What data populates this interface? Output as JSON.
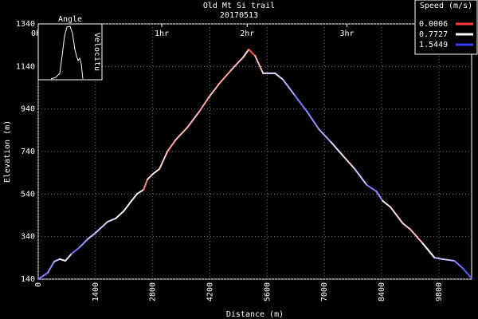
{
  "chart_data": {
    "type": "line",
    "title": "Old Mt Si trail",
    "subtitle": "20170513",
    "x_label": "Distance (m)",
    "y_label": "Elevation (m)",
    "x": [
      0,
      234,
      390,
      526,
      663,
      819,
      1014,
      1209,
      1404,
      1697,
      1892,
      2087,
      2282,
      2418,
      2574,
      2672,
      2808,
      2964,
      3159,
      3354,
      3647,
      3939,
      4173,
      4427,
      4719,
      5012,
      5148,
      5304,
      5499,
      5792,
      5987,
      6279,
      6572,
      6864,
      7157,
      7449,
      7742,
      8034,
      8268,
      8424,
      8619,
      8912,
      9107,
      9399,
      9692,
      9887,
      10179,
      10374,
      10600
    ],
    "y": [
      140,
      170,
      223,
      234,
      226,
      260,
      290,
      328,
      358,
      410,
      425,
      459,
      508,
      541,
      560,
      609,
      635,
      658,
      740,
      793,
      853,
      928,
      995,
      1059,
      1123,
      1183,
      1220,
      1190,
      1108,
      1108,
      1078,
      1003,
      928,
      845,
      785,
      721,
      658,
      583,
      553,
      508,
      478,
      403,
      373,
      309,
      241,
      234,
      226,
      193,
      144
    ],
    "speed": [
      1.3,
      1.2,
      1.0,
      0.8,
      0.9,
      1.3,
      1.2,
      1.0,
      1.0,
      0.9,
      0.8,
      0.8,
      0.7,
      0.8,
      0.3,
      0.6,
      0.7,
      0.6,
      0.4,
      0.5,
      0.5,
      0.4,
      0.5,
      0.4,
      0.5,
      0.6,
      0.1,
      0.5,
      0.9,
      0.9,
      1.1,
      1.3,
      1.2,
      1.1,
      0.9,
      0.6,
      1.0,
      1.3,
      1.2,
      0.7,
      0.6,
      0.6,
      0.5,
      0.8,
      1.0,
      1.0,
      1.3,
      1.4,
      1.4
    ],
    "xlim": [
      0,
      10600
    ],
    "ylim": [
      140,
      1340
    ],
    "xticks": [
      0,
      1400,
      2800,
      4200,
      5600,
      7000,
      8400,
      9800
    ],
    "yticks": [
      140,
      340,
      540,
      740,
      940,
      1140,
      1340
    ],
    "top_ticks": [
      {
        "value": 0,
        "label": "0hr"
      },
      {
        "value": 3020,
        "label": "1hr"
      },
      {
        "value": 5110,
        "label": "2hr"
      },
      {
        "value": 7550,
        "label": "3hr"
      }
    ],
    "grid": true,
    "legend": {
      "title": "Speed (m/s)",
      "values": [
        0.0006,
        0.7727,
        1.5449
      ],
      "colors": [
        "#ff3c3c",
        "#ffffff",
        "#3c3cff"
      ]
    },
    "inset": {
      "title": "Angle",
      "side_label": "Velocitu"
    }
  }
}
